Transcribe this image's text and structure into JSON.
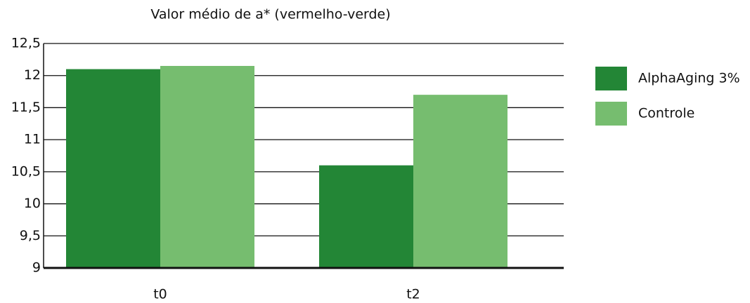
{
  "chart_data": {
    "type": "bar",
    "title": "Valor médio de a* (vermelho-verde)",
    "categories": [
      "t0",
      "t2"
    ],
    "series": [
      {
        "name": "AlphaAging 3%",
        "color": "#238636",
        "values": [
          12.1,
          10.6
        ]
      },
      {
        "name": "Controle",
        "color": "#76bd6f",
        "values": [
          12.15,
          11.7
        ]
      }
    ],
    "ylim": [
      9,
      12.5
    ],
    "yticks": [
      9,
      {
        "value": 9.5,
        "label": "9,5"
      },
      10,
      {
        "value": 10.5,
        "label": "10,5"
      },
      11,
      {
        "value": 11.5,
        "label": "11,5"
      },
      12,
      {
        "value": 12.5,
        "label": "12,5"
      }
    ],
    "grid": true,
    "legend": "right"
  }
}
